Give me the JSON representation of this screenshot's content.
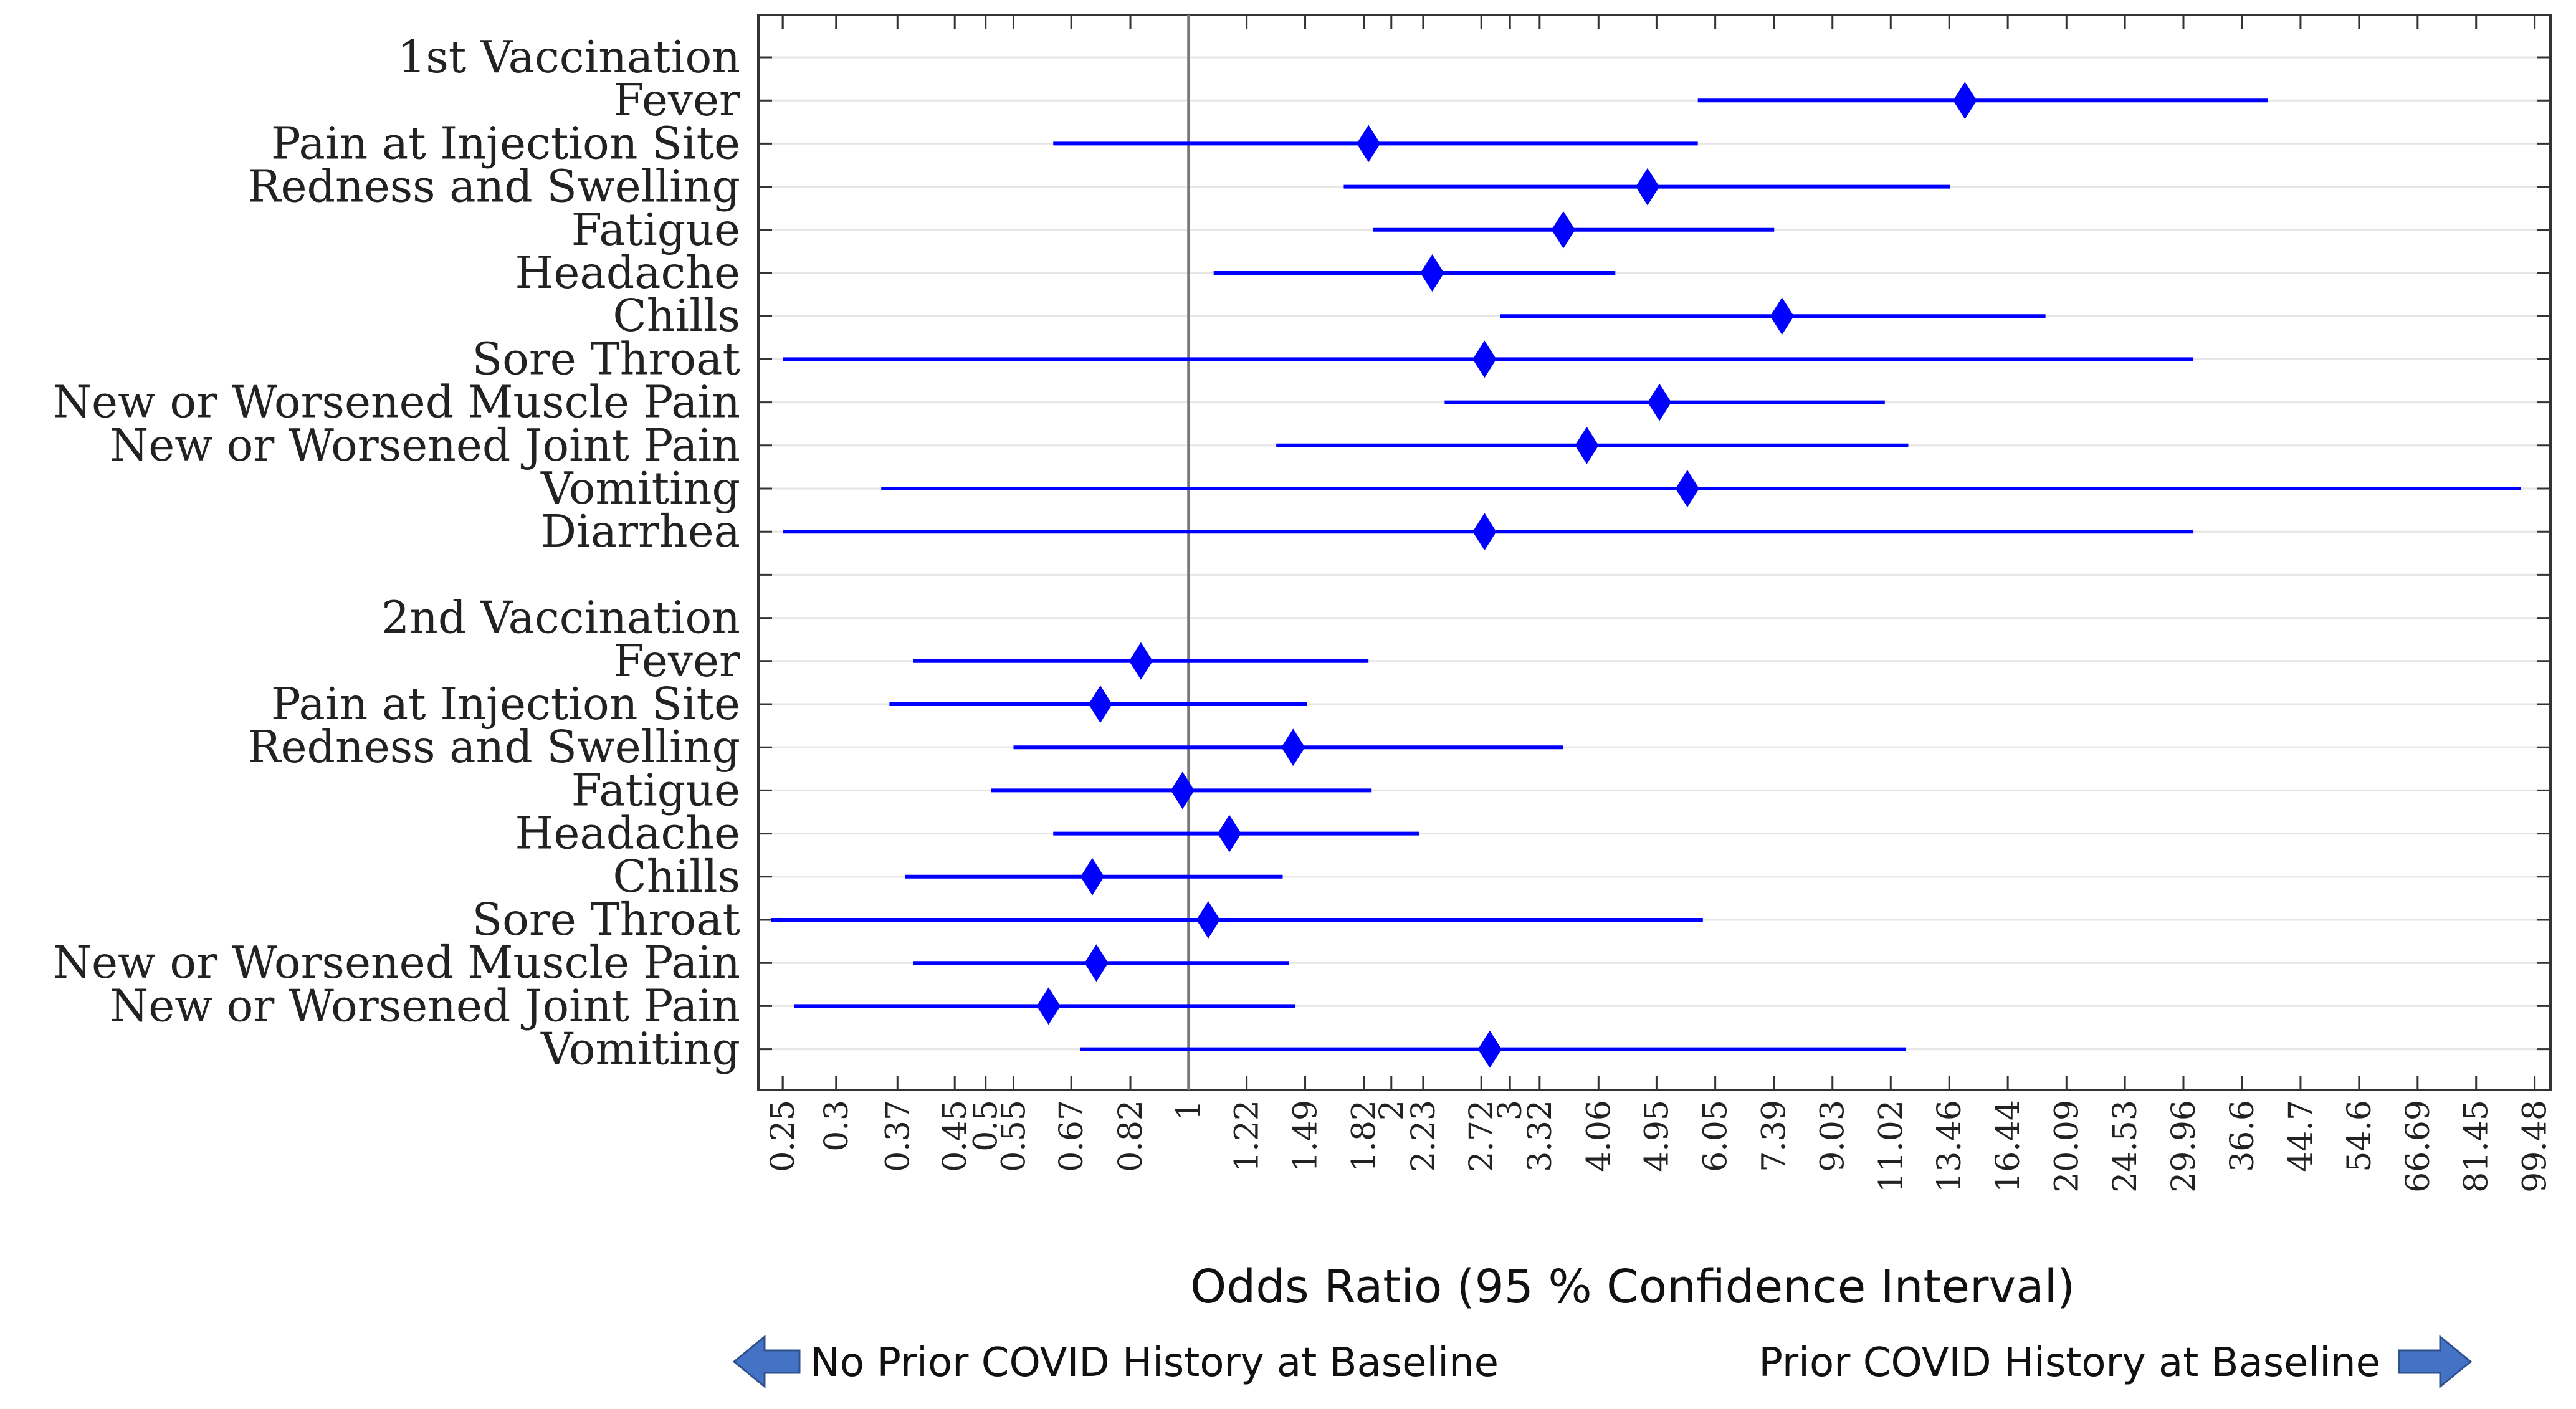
{
  "chart_data": {
    "type": "forest",
    "xlabel": "Odds Ratio (95 % Confidence Interval)",
    "x_scale": "log",
    "xlim": [
      0.23,
      105
    ],
    "reference_line": 1,
    "x_ticks": [
      "0.25",
      "0.25",
      "0.3",
      "0.37",
      "0.45",
      "0.5",
      "0.55",
      "0.67",
      "0.82",
      "1",
      "1.22",
      "1.49",
      "1.82",
      "2",
      "2.23",
      "2.72",
      "3",
      "3.32",
      "4.06",
      "4.95",
      "6.05",
      "7.39",
      "9.03",
      "11.02",
      "13.46",
      "16.44",
      "20.09",
      "24.53",
      "29.96",
      "36.6",
      "44.7",
      "54.6",
      "66.69",
      "81.45",
      "99.48"
    ],
    "rows": [
      {
        "label": "1st Vaccination",
        "header": true
      },
      {
        "label": "Fever",
        "or": 14.2,
        "lower": 5.7,
        "upper": 40
      },
      {
        "label": "Pain at Injection Site",
        "or": 1.85,
        "lower": 0.63,
        "upper": 5.7
      },
      {
        "label": "Redness and Swelling",
        "or": 4.8,
        "lower": 1.7,
        "upper": 13.5
      },
      {
        "label": "Fatigue",
        "or": 3.6,
        "lower": 1.88,
        "upper": 7.4
      },
      {
        "label": "Headache",
        "or": 2.3,
        "lower": 1.09,
        "upper": 4.3
      },
      {
        "label": "Chills",
        "or": 7.6,
        "lower": 2.9,
        "upper": 18.7
      },
      {
        "label": "Sore Throat",
        "or": 2.75,
        "lower": 0.25,
        "upper": 31
      },
      {
        "label": "New or Worsened Muscle Pain",
        "or": 5.0,
        "lower": 2.4,
        "upper": 10.8
      },
      {
        "label": "New or Worsened Joint Pain",
        "or": 3.9,
        "lower": 1.35,
        "upper": 11.7
      },
      {
        "label": "Vomiting",
        "or": 5.5,
        "lower": 0.35,
        "upper": 95
      },
      {
        "label": "Diarrhea",
        "or": 2.75,
        "lower": 0.25,
        "upper": 31
      },
      {
        "label": "",
        "spacer": true
      },
      {
        "label": "2nd Vaccination",
        "header": true
      },
      {
        "label": "Fever",
        "or": 0.85,
        "lower": 0.39,
        "upper": 1.85
      },
      {
        "label": "Pain at Injection Site",
        "or": 0.74,
        "lower": 0.36,
        "upper": 1.5
      },
      {
        "label": "Redness and Swelling",
        "or": 1.43,
        "lower": 0.55,
        "upper": 3.6
      },
      {
        "label": "Fatigue",
        "or": 0.98,
        "lower": 0.51,
        "upper": 1.87
      },
      {
        "label": "Headache",
        "or": 1.15,
        "lower": 0.63,
        "upper": 2.2
      },
      {
        "label": "Chills",
        "or": 0.72,
        "lower": 0.38,
        "upper": 1.38
      },
      {
        "label": "Sore Throat",
        "or": 1.07,
        "lower": 0.24,
        "upper": 5.8
      },
      {
        "label": "New or Worsened Muscle Pain",
        "or": 0.73,
        "lower": 0.39,
        "upper": 1.41
      },
      {
        "label": "New or Worsened Joint Pain",
        "or": 0.62,
        "lower": 0.26,
        "upper": 1.44
      },
      {
        "label": "Vomiting",
        "or": 2.8,
        "lower": 0.69,
        "upper": 11.6
      }
    ],
    "colors": {
      "marker": "#0000ff",
      "ci_line": "#0000ff",
      "arrow_fill": "#4472c4",
      "arrow_stroke": "#2f528f",
      "grid": "#e6e6e6",
      "ref_line": "#777777"
    }
  },
  "annotations": {
    "left_arrow_label": "No Prior COVID History at Baseline",
    "right_arrow_label": "Prior COVID History at Baseline"
  }
}
